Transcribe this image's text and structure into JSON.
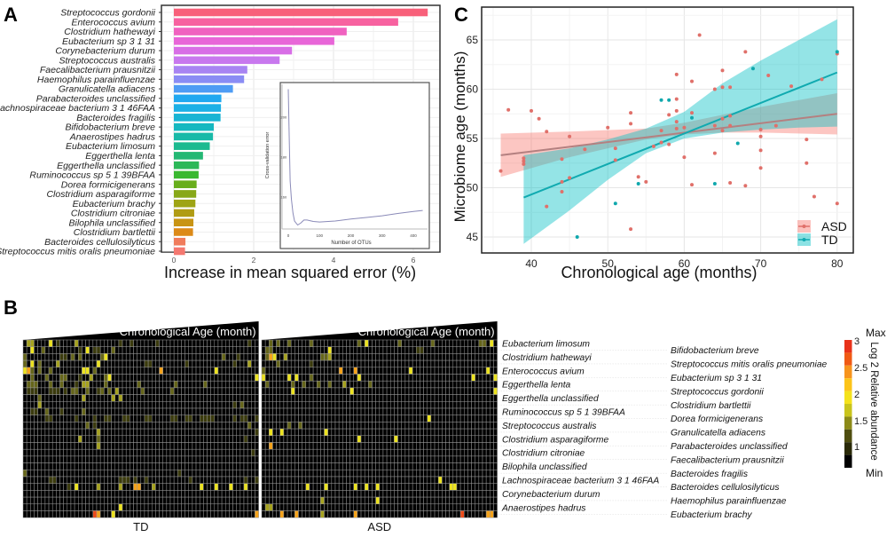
{
  "panel_labels": {
    "a": "A",
    "b": "B",
    "c": "C"
  },
  "chart_data": [
    {
      "id": "A",
      "type": "bar",
      "orientation": "horizontal",
      "xlabel": "Increase in mean squared error (%)",
      "xlim": [
        0,
        6.6
      ],
      "xticks": [
        "0",
        "2",
        "4",
        "6"
      ],
      "categories": [
        "Streptococcus gordonii",
        "Enterococcus avium",
        "Clostridium hathewayi",
        "Eubacterium sp 3 1 31",
        "Corynebacterium durum",
        "Streptococcus australis",
        "Faecalibacterium prausnitzii",
        "Haemophilus parainfluenzae",
        "Granulicatella adiacens",
        "Parabacteroides unclassified",
        "Lachnospiraceae bacterium 3 1 46FAA",
        "Bacteroides fragilis",
        "Bifidobacterium breve",
        "Anaerostipes hadrus",
        "Eubacterium limosum",
        "Eggerthella lenta",
        "Eggerthella unclassified",
        "Ruminococcus sp 5 1 39BFAA",
        "Dorea formicigenerans",
        "Clostridium asparagiforme",
        "Eubacterium brachy",
        "Clostridium citroniae",
        "Bilophila unclassified",
        "Clostridium bartlettii",
        "Bacteroides cellulosilyticus",
        "Streptococcus mitis oralis pneumoniae"
      ],
      "values": [
        6.36,
        5.62,
        4.33,
        4.02,
        2.96,
        2.65,
        1.84,
        1.76,
        1.48,
        1.19,
        1.18,
        1.17,
        1.0,
        0.98,
        0.9,
        0.73,
        0.63,
        0.62,
        0.57,
        0.56,
        0.54,
        0.51,
        0.49,
        0.48,
        0.29,
        0.28
      ],
      "colors": [
        "#f8607a",
        "#f762a0",
        "#f062c0",
        "#e866d8",
        "#d86ee6",
        "#c878ee",
        "#a884f2",
        "#8a8cf4",
        "#4e9cf4",
        "#20a8f0",
        "#1cb0e6",
        "#18b4d4",
        "#16b8c0",
        "#18baa8",
        "#1cba90",
        "#24b874",
        "#2cb858",
        "#3ab830",
        "#68ae1c",
        "#88a818",
        "#9ea414",
        "#b09c14",
        "#c89414",
        "#dc8a18",
        "#f07c5c",
        "#f47870"
      ]
    },
    {
      "id": "A-inset",
      "type": "line",
      "xlabel": "Number of OTUs",
      "ylabel": "Cross-validation error",
      "xticks": [
        0,
        100,
        200,
        300,
        400
      ],
      "yticks": [
        160,
        180,
        200
      ],
      "x": [
        0,
        3,
        6,
        10,
        15,
        20,
        30,
        40,
        50,
        60,
        80,
        100,
        150,
        200,
        250,
        300,
        350,
        400,
        430
      ],
      "y": [
        214,
        190,
        168,
        159,
        152,
        148,
        146,
        147,
        148.5,
        148.5,
        147.8,
        147.5,
        148,
        149,
        149.8,
        150.6,
        151.8,
        152.8,
        153.3
      ]
    },
    {
      "id": "C",
      "type": "scatter",
      "xlabel": "Chronological age (months)",
      "ylabel": "Microbiome age (months)",
      "xlim": [
        34.5,
        82.5
      ],
      "ylim": [
        43.2,
        68
      ],
      "xticks": [
        40,
        50,
        60,
        70,
        80
      ],
      "yticks": [
        45,
        50,
        55,
        60,
        65
      ],
      "legend": {
        "position": "bottom-right",
        "items": [
          "ASD",
          "TD"
        ]
      },
      "series": [
        {
          "name": "ASD",
          "color": "#f8766d",
          "points": [
            [
              36,
              51.7
            ],
            [
              37,
              57.9
            ],
            [
              40,
              57.8
            ],
            [
              41,
              57.0
            ],
            [
              42,
              55.7
            ],
            [
              39,
              53.0
            ],
            [
              39,
              52.7
            ],
            [
              39,
              52.4
            ],
            [
              45,
              55.2
            ],
            [
              44,
              52.9
            ],
            [
              44,
              50.6
            ],
            [
              45,
              51.0
            ],
            [
              44,
              49.6
            ],
            [
              42,
              48.1
            ],
            [
              47,
              53.9
            ],
            [
              50,
              56.1
            ],
            [
              51,
              54.0
            ],
            [
              51,
              52.8
            ],
            [
              53,
              57.6
            ],
            [
              53,
              56.5
            ],
            [
              53,
              45.8
            ],
            [
              54,
              51.1
            ],
            [
              55,
              50.6
            ],
            [
              56,
              54.2
            ],
            [
              57,
              55.8
            ],
            [
              57,
              54.6
            ],
            [
              58,
              57.4
            ],
            [
              58,
              54.4
            ],
            [
              59,
              61.5
            ],
            [
              59,
              59.0
            ],
            [
              59,
              57.8
            ],
            [
              59,
              56.7
            ],
            [
              59,
              56.0
            ],
            [
              60,
              56.1
            ],
            [
              60,
              53.1
            ],
            [
              61,
              60.8
            ],
            [
              61,
              57.6
            ],
            [
              61,
              50.3
            ],
            [
              62,
              65.5
            ],
            [
              64,
              60.0
            ],
            [
              64,
              56.3
            ],
            [
              64,
              53.5
            ],
            [
              65,
              61.9
            ],
            [
              65,
              60.2
            ],
            [
              65,
              57.0
            ],
            [
              65,
              55.8
            ],
            [
              66,
              60.2
            ],
            [
              66,
              57.3
            ],
            [
              66,
              56.3
            ],
            [
              66,
              50.5
            ],
            [
              68,
              63.8
            ],
            [
              68,
              50.2
            ],
            [
              70,
              55.9
            ],
            [
              70,
              55.2
            ],
            [
              70,
              53.8
            ],
            [
              70,
              52.0
            ],
            [
              71,
              61.4
            ],
            [
              72,
              56.3
            ],
            [
              74,
              60.3
            ],
            [
              76,
              54.9
            ],
            [
              76,
              52.5
            ],
            [
              77,
              49.1
            ],
            [
              78,
              61.0
            ],
            [
              80,
              63.6
            ],
            [
              80,
              48.4
            ]
          ],
          "fit": [
            [
              36,
              53.3
            ],
            [
              80,
              57.5
            ]
          ],
          "band": [
            [
              36,
              51.1,
              55.5
            ],
            [
              45,
              53.1,
              55.7
            ],
            [
              55,
              54.9,
              56.0
            ],
            [
              60,
              55.4,
              56.6
            ],
            [
              65,
              55.6,
              57.4
            ],
            [
              70,
              55.6,
              58.2
            ],
            [
              80,
              55.4,
              59.6
            ]
          ]
        },
        {
          "name": "TD",
          "color": "#00bfc4",
          "points": [
            [
              46,
              45.0
            ],
            [
              51,
              48.4
            ],
            [
              54,
              50.4
            ],
            [
              57,
              58.9
            ],
            [
              58,
              58.9
            ],
            [
              61,
              57.1
            ],
            [
              64,
              50.4
            ],
            [
              67,
              54.5
            ],
            [
              69,
              62.1
            ],
            [
              80,
              63.8
            ]
          ],
          "fit": [
            [
              39,
              49.0
            ],
            [
              80,
              61.7
            ]
          ],
          "band": [
            [
              39,
              44.3,
              53.3
            ],
            [
              45,
              47.7,
              54.0
            ],
            [
              50,
              50.8,
              54.9
            ],
            [
              55,
              53.5,
              56.0
            ],
            [
              60,
              55.0,
              57.7
            ],
            [
              65,
              55.6,
              60.6
            ],
            [
              70,
              55.9,
              62.9
            ],
            [
              75,
              56.1,
              65.0
            ],
            [
              80,
              56.2,
              67.1
            ]
          ]
        }
      ]
    },
    {
      "id": "B",
      "type": "heatmap",
      "header": "Chronological Age (month)",
      "groups": [
        "TD",
        "ASD"
      ],
      "rows": [
        "Eubacterium limosum",
        "Bifidobacterium breve",
        "Clostridium hathewayi",
        "Streptococcus mitis oralis pneumoniae",
        "Enterococcus avium",
        "Eubacterium sp 3 1 31",
        "Eggerthella lenta",
        "Streptococcus gordonii",
        "Eggerthella unclassified",
        "Clostridium bartlettii",
        "Ruminococcus sp 5 1 39BFAA",
        "Dorea formicigenerans",
        "Streptococcus australis",
        "Granulicatella adiacens",
        "Clostridium asparagiforme",
        "Parabacteroides unclassified",
        "Clostridium citroniae",
        "Faecalibacterium prausnitzii",
        "Bilophila unclassified",
        "Bacteroides fragilis",
        "Lachnospiraceae bacterium 3 1 46FAA",
        "Bacteroides cellulosilyticus",
        "Corynebacterium durum",
        "Haemophilus parainfluenzae",
        "Anaerostipes hadrus",
        "Eubacterium brachy"
      ],
      "levels_note": "0=min ... 6=max",
      "colorbar": {
        "title": "Log 2 Relative abundance",
        "ticks": [
          "3",
          "2.5",
          "2",
          "1.5",
          "1"
        ],
        "max_label": "Max",
        "min_label": "Min"
      },
      "level_colors": [
        "#000000",
        "#3b3b0d",
        "#66661a",
        "#a6a21e",
        "#ece21f",
        "#f5a31b",
        "#ee4a19"
      ],
      "matrix": {
        "TD": [
          "0330000401000030000000000010010000001000000000000000000000000100",
          "0040020000000001040110002000000000000000000000000000000000000000",
          "2000000000110202000002400000000000000000000000000000002000100000",
          "2040200003000000000040000000000001100000000010000000000001000300",
          "4520200200000000440200000000000000000500000000000000400000000000",
          "0020002000220001003000240000000000000000000000000000000000000004",
          "0222000200200010330000200000000200000000020000000200000000000000",
          "0111000111010220020012020300000020000000200000000000000000000000",
          "0000200000000000300000003030000000000000000000000000000000000000",
          "0000300000000000000000000000000000000000000000000000000001020000",
          "0011002000100000200000000000000000000000000000000000000000000000",
          "0000001100000010000100110001100001100000110011001111000001011001",
          "0000000000000000020100000000000000000000000000000000000000000200",
          "0000000000000000000030000000000000000000000000000000000000000001",
          "0000000000000003000020000000000000000000000000000000000000001000",
          "0000000000000000000030000000000000000000000000000000000000000000",
          "0000000000000000000000000000000000000000000000000000000000000010",
          "0000000000000000000000000000000000000000000000000000000000000000",
          "0000000000000000000000000000000000000000000000000000000000000000",
          "2000000000000000000000000000000000000000001000000000000000000000",
          "0000000110000000000000000011101001000000000001000000000000001001",
          "0000000000001040000030000030005500030000000000004000400040004000",
          "0000000000000000000000000000000000000000000000000000000000000000",
          "0000000000000000000000000000000000000000000000000000000000000000",
          "0000000000000000000000000040000000000000000000000000000000000000",
          "0000000000000000000650004000000000000000000000000000000000000005"
        ],
        "ASD": [
          "0020200200000200000000000020400000000200000000200000000000022040",
          "0220000000000000004000000000000000000000001100000000000000000000",
          "0254003000000000223000000000000000000000000000000000000000000000",
          "0000200000000100000000000000000000000000000000000000000000000000",
          "2000000000000000000005000500000000000000400000000000000000000400",
          "4000000404000200000000000040000000000000000000000000000004000004",
          "0200000020020002002000300000020000000000000000000000000000000000",
          "0000000040000000000000004000000000000000000000000000000000000004",
          "0000000000000000000000000000000000000000000000000000000000000000",
          "0000000000000000000000000000000000000000000000000000000000000000",
          "0000000000000000000000000000000000000000000000000000000000000000",
          "0000000000000000000000000000000000000000000004000000000000000000",
          "0000000200200000000000000000000000000000000000000000000000000000",
          "0040040000000000040000000000000000000000000000000000000000000000",
          "0000000000000000000000000040000000004000000000000000000000000000",
          "0050000000000000000000000000000000000000000000000000000000000000",
          "0000000000000000000000000000000000000000000000000000000000000000",
          "0000000000000000000000000000000000000000000000000000000000000000",
          "0000000000000000000000000000000000000000000000000000000000000000",
          "0000000000000000000000000000000000000000000000000000000000000000",
          "0000000000000000000000000000000000000000000000004000000000000000",
          "0000000000004000040000000400400400000000000000000004400000000000",
          "0000000000000000000000000000000000000000000000000000000000000000",
          "0000000000000000300000000000000400000000000000000000000000000000",
          "0330000000000000000000000000000000000000000000000000000000000000",
          "0000050005000000300000000500000000000000000000000000006000000550"
        ]
      }
    }
  ]
}
